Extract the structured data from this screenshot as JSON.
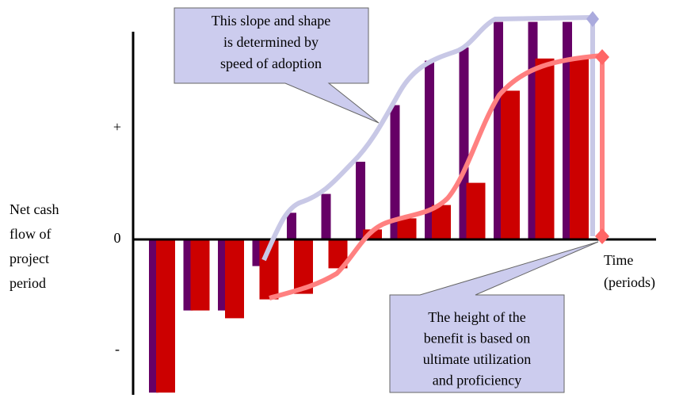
{
  "chart_data": {
    "type": "bar",
    "y_label": [
      "Net cash",
      "flow of",
      "project",
      "period"
    ],
    "x_label": [
      "Time",
      "(periods)"
    ],
    "annotations": [
      {
        "text": [
          "This slope and shape",
          "is determined by",
          "speed of adoption"
        ]
      },
      {
        "text": [
          "The height of the",
          "benefit is based on",
          "ultimate utilization",
          "and proficiency"
        ]
      }
    ],
    "categories": [
      null,
      null,
      null,
      null,
      null,
      null,
      null,
      null,
      null,
      null,
      null,
      null,
      null
    ],
    "series": [
      {
        "color": "#660066",
        "values": [
          -1.38,
          -0.64,
          -0.64,
          -0.24,
          0.24,
          0.41,
          0.7,
          1.21,
          1.61,
          1.73,
          1.96,
          1.96,
          1.96
        ]
      },
      {
        "color": "#cc0000",
        "values": [
          -1.38,
          -0.64,
          -0.71,
          -0.54,
          -0.49,
          -0.26,
          0.09,
          0.19,
          0.31,
          0.51,
          1.34,
          1.63,
          1.63
        ]
      }
    ],
    "ylim": [
      -1.4,
      2.0
    ],
    "yticks": [
      {
        "value": -1,
        "label": "-"
      },
      0,
      {
        "value": 1,
        "label": "+"
      }
    ]
  }
}
